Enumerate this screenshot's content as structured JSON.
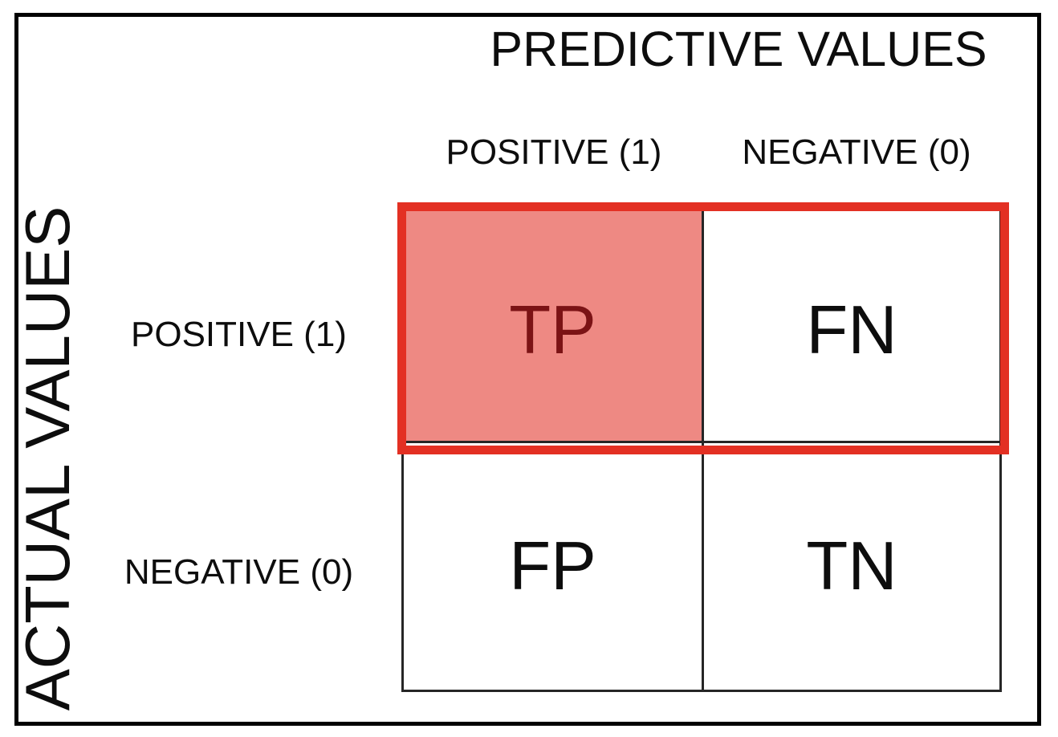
{
  "matrix": {
    "top_axis_title": "PREDICTIVE VALUES",
    "left_axis_title": "ACTUAL VALUES",
    "column_headers": [
      "POSITIVE (1)",
      "NEGATIVE (0)"
    ],
    "row_headers": [
      "POSITIVE (1)",
      "NEGATIVE (0)"
    ],
    "cells": [
      [
        "TP",
        "FN"
      ],
      [
        "FP",
        "TN"
      ]
    ],
    "highlighted_cell": "TP",
    "highlighted_row": "POSITIVE (1)"
  },
  "colors": {
    "highlight_border": "#e33023",
    "tp_fill": "#ee8983",
    "tp_text": "#7b1315",
    "grid_line": "#262626",
    "page_border": "#000000",
    "text": "#0d0d0d"
  }
}
